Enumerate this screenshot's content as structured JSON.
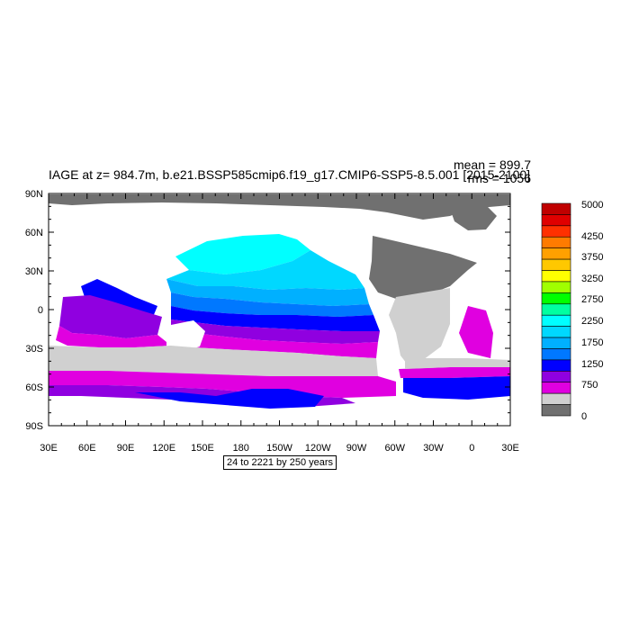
{
  "title": "IAGE at z= 984.7m, b.e21.BSSP585cmip6.f19_g17.CMIP6-SSP5-8.5.001 [2015-2100]",
  "stats": {
    "mean": "mean = 899.7",
    "rms": "rms = 1056"
  },
  "caption": "24 to 2221 by 250 years",
  "map": {
    "lat_ticks": [
      "90N",
      "60N",
      "30N",
      "0",
      "30S",
      "60S",
      "90S"
    ],
    "lon_ticks": [
      "30E",
      "60E",
      "90E",
      "120E",
      "150E",
      "180",
      "150W",
      "120W",
      "90W",
      "60W",
      "30W",
      "0",
      "30E"
    ]
  },
  "colorbar": {
    "labels": [
      "5000",
      "4250",
      "3750",
      "3250",
      "2750",
      "2250",
      "1750",
      "1250",
      "750",
      "0"
    ],
    "colors": [
      "#c00000",
      "#e00000",
      "#ff3000",
      "#ff7b00",
      "#ffa000",
      "#ffc800",
      "#ffff00",
      "#a0ff00",
      "#00ff00",
      "#00ffa0",
      "#00ffff",
      "#00d8ff",
      "#00b0ff",
      "#0078ff",
      "#0000ff",
      "#9000e0",
      "#e000e0",
      "#d0d0d0",
      "#707070"
    ]
  },
  "colors": {
    "land": "#707070",
    "missing": "#d0d0d0",
    "age_750": "#e000e0",
    "age_1000": "#9000e0",
    "age_1250": "#0000ff",
    "age_1500": "#0078ff",
    "age_1750": "#00b0ff",
    "age_2000": "#00d8ff",
    "age_2250": "#00ffff"
  }
}
